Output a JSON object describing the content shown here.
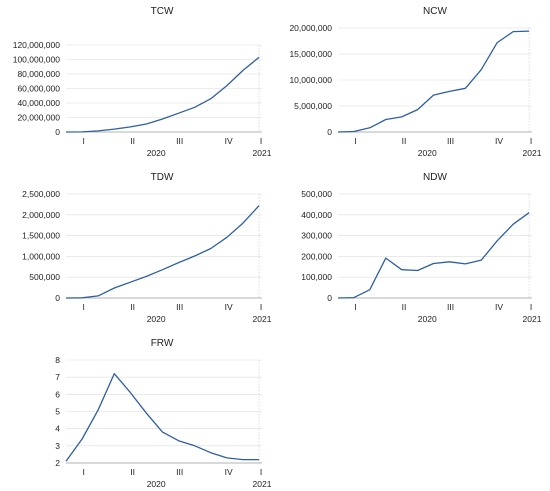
{
  "chart_data": [
    {
      "type": "line",
      "title": "TCW",
      "ylim": [
        0,
        120000000
      ],
      "yticks": [
        "0",
        "20,000,000",
        "40,000,000",
        "60,000,000",
        "80,000,000",
        "100,000,000",
        "120,000,000"
      ],
      "x_quarter_labels": [
        "I",
        "II",
        "III",
        "IV",
        "I"
      ],
      "x_year_labels": [
        "2020",
        "2021"
      ],
      "series": [
        {
          "values": [
            0,
            100000,
            1500000,
            4000000,
            7000000,
            11000000,
            18000000,
            26000000,
            34000000,
            46000000,
            64000000,
            85000000,
            103000000
          ]
        }
      ],
      "color": "#2e5fa3"
    },
    {
      "type": "line",
      "title": "NCW",
      "ylim": [
        0,
        20000000
      ],
      "yticks": [
        "0",
        "5,000,000",
        "10,000,000",
        "15,000,000",
        "20,000,000"
      ],
      "x_quarter_labels": [
        "I",
        "II",
        "III",
        "IV",
        "I"
      ],
      "x_year_labels": [
        "2020",
        "2021"
      ],
      "series": [
        {
          "values": [
            0,
            100000,
            800000,
            2400000,
            2900000,
            4300000,
            7100000,
            7800000,
            8400000,
            12000000,
            17200000,
            19300000,
            19400000
          ]
        }
      ],
      "color": "#2e5fa3"
    },
    {
      "type": "line",
      "title": "TDW",
      "ylim": [
        0,
        2500000
      ],
      "yticks": [
        "0",
        "500,000",
        "1,000,000",
        "1,500,000",
        "2,000,000",
        "2,500,000"
      ],
      "x_quarter_labels": [
        "I",
        "II",
        "III",
        "IV",
        "I"
      ],
      "x_year_labels": [
        "2020",
        "2021"
      ],
      "series": [
        {
          "values": [
            0,
            5000,
            50000,
            240000,
            380000,
            520000,
            680000,
            850000,
            1010000,
            1190000,
            1460000,
            1800000,
            2220000
          ]
        }
      ],
      "color": "#2e5fa3"
    },
    {
      "type": "line",
      "title": "NDW",
      "ylim": [
        0,
        500000
      ],
      "yticks": [
        "0",
        "100,000",
        "200,000",
        "300,000",
        "400,000",
        "500,000"
      ],
      "x_quarter_labels": [
        "I",
        "II",
        "III",
        "IV",
        "I"
      ],
      "x_year_labels": [
        "2020",
        "2021"
      ],
      "series": [
        {
          "values": [
            0,
            2000,
            40000,
            192000,
            136000,
            132000,
            166000,
            174000,
            164000,
            182000,
            275000,
            355000,
            410000
          ]
        }
      ],
      "color": "#2e5fa3"
    },
    {
      "type": "line",
      "title": "FRW",
      "ylim": [
        2,
        8
      ],
      "yticks": [
        "2",
        "3",
        "4",
        "5",
        "6",
        "7",
        "8"
      ],
      "x_quarter_labels": [
        "I",
        "II",
        "III",
        "IV",
        "I"
      ],
      "x_year_labels": [
        "2020",
        "2021"
      ],
      "series": [
        {
          "values": [
            2.1,
            3.4,
            5.1,
            7.2,
            6.1,
            4.9,
            3.8,
            3.3,
            3.0,
            2.6,
            2.3,
            2.2,
            2.2
          ]
        }
      ],
      "color": "#2e5fa3"
    }
  ]
}
